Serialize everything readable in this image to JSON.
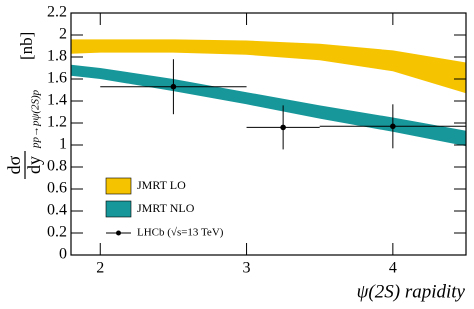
{
  "chart_data": {
    "type": "band",
    "x_label": "ψ(2S) rapidity",
    "y_label": {
      "numerator": "dσ",
      "denominator": "dy",
      "subscript": "pp→pψ(2S)p",
      "unit": "[nb]"
    },
    "xlim": [
      1.8,
      4.5
    ],
    "xticks": [
      2,
      3,
      4
    ],
    "ylim": [
      0,
      2.2
    ],
    "yticks": [
      0,
      0.2,
      0.4,
      0.6,
      0.8,
      1,
      1.2,
      1.4,
      1.6,
      1.8,
      2,
      2.2
    ],
    "bands": {
      "x": [
        1.8,
        2,
        2.5,
        3,
        3.5,
        4,
        4.5
      ],
      "series": [
        {
          "name": "JMRT LO",
          "color": "#f6c300",
          "high": [
            1.96,
            1.96,
            1.96,
            1.95,
            1.92,
            1.86,
            1.75
          ],
          "low": [
            1.83,
            1.84,
            1.84,
            1.82,
            1.77,
            1.67,
            1.47
          ]
        },
        {
          "name": "JMRT NLO",
          "color": "#17979a",
          "high": [
            1.73,
            1.7,
            1.6,
            1.48,
            1.36,
            1.25,
            1.13
          ],
          "low": [
            1.63,
            1.6,
            1.49,
            1.37,
            1.24,
            1.12,
            0.99
          ]
        }
      ]
    },
    "points": {
      "name": "LHCb (√s=13 TeV)",
      "color": "#000000",
      "x": [
        2.5,
        3.25,
        4
      ],
      "y": [
        1.53,
        1.16,
        1.17
      ],
      "x_low": [
        2,
        3,
        3.5
      ],
      "x_high": [
        3,
        3.5,
        4.5
      ],
      "y_low": [
        1.28,
        0.96,
        0.97
      ],
      "y_high": [
        1.78,
        1.36,
        1.37
      ]
    }
  }
}
